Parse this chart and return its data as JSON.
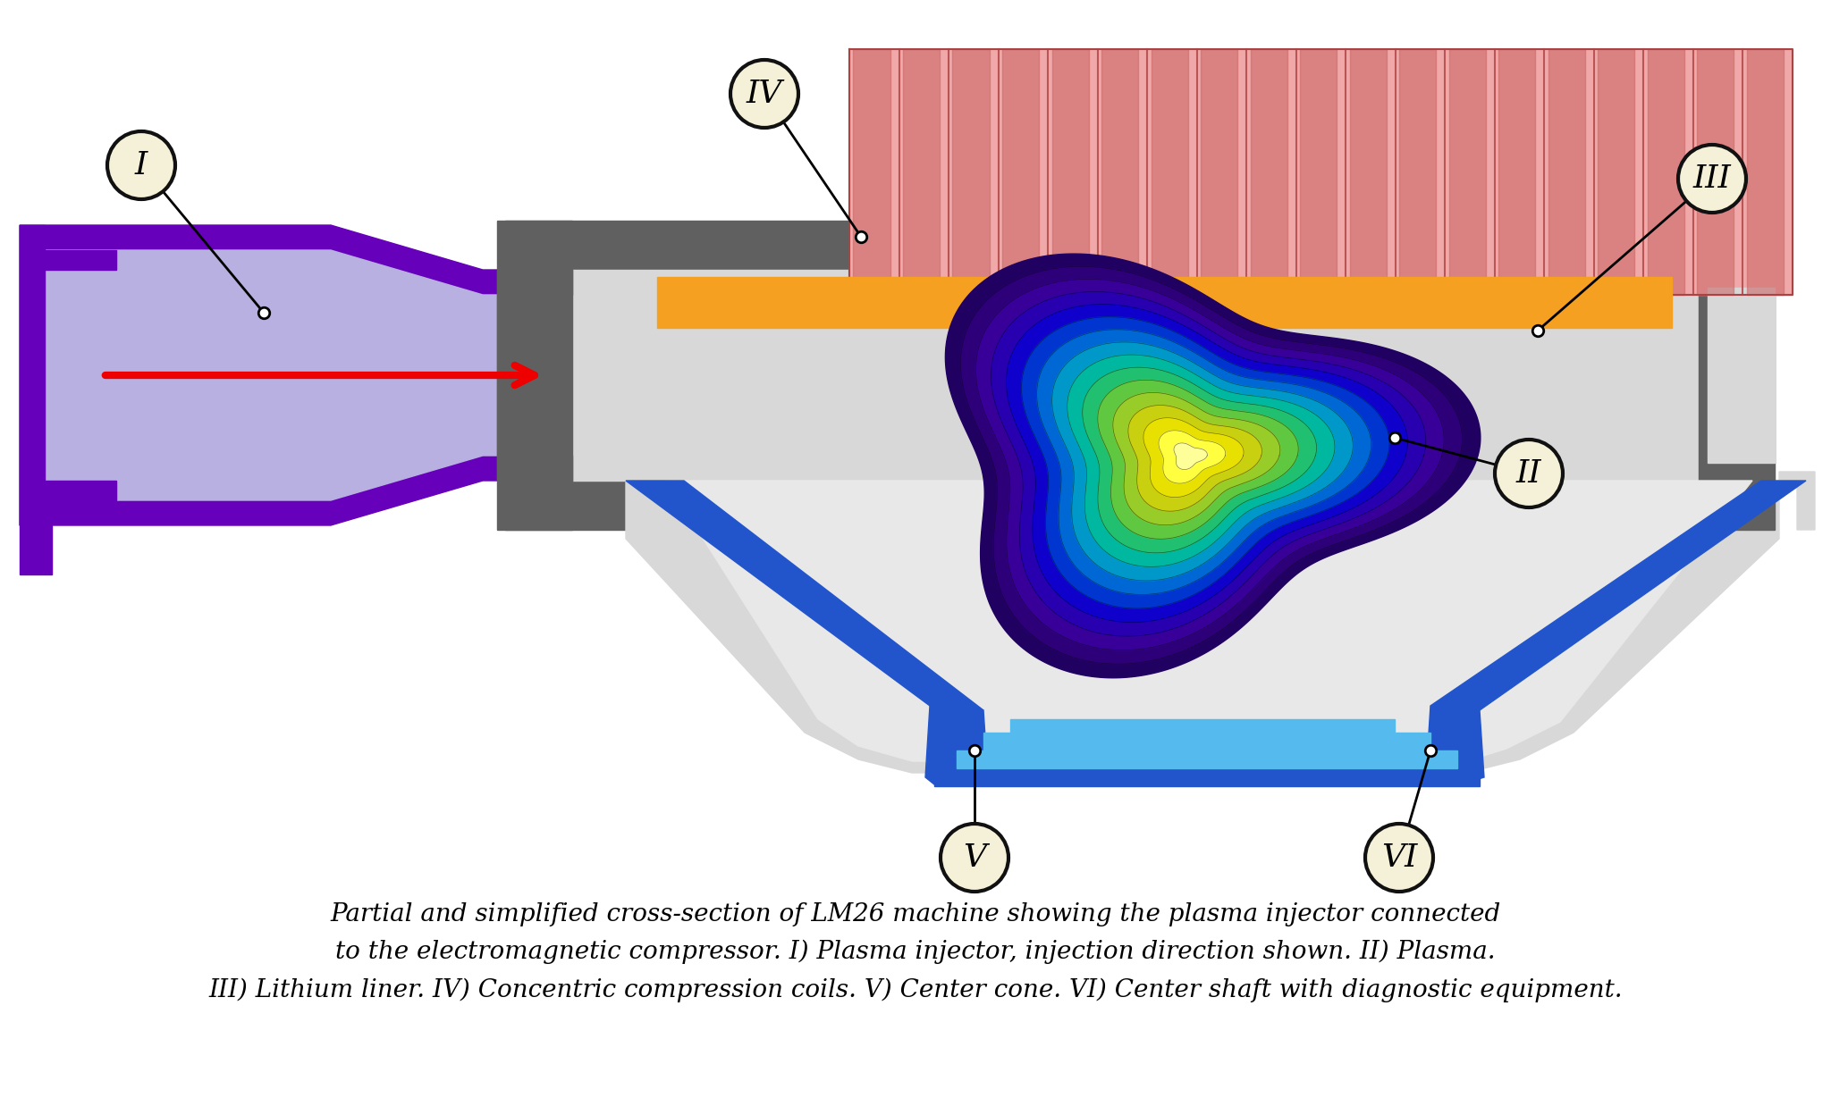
{
  "bg_color": "#ffffff",
  "caption": "Partial and simplified cross-section of LM26 machine showing the plasma injector connected\nto the electromagnetic compressor. I) Plasma injector, injection direction shown. II) Plasma.\nIII) Lithium liner. IV) Concentric compression coils. V) Center cone. VI) Center shaft with diagnostic equipment.",
  "label_bg": "#f5f0d8",
  "label_border": "#111111",
  "gray_dark": "#606060",
  "gray_light": "#d8d8d8",
  "purple_dark": "#6600bb",
  "purple_fill": "#b8b0e0",
  "blue_strut": "#2255cc",
  "blue_light": "#55bbee",
  "blue_floor": "#88ccff",
  "orange_liner": "#f5a020",
  "pink_coil_bg": "#f0a8a8",
  "pink_coil_stripe": "#cc6868",
  "red_arrow": "#ee0000",
  "plasma_colors": [
    "#200060",
    "#2d007a",
    "#380098",
    "#2800b0",
    "#1000cc",
    "#0035d0",
    "#0068d5",
    "#0098c8",
    "#00b8a0",
    "#20c070",
    "#60c840",
    "#98cc28",
    "#c8d010",
    "#e8e000",
    "#ffff40",
    "#ffff99"
  ]
}
